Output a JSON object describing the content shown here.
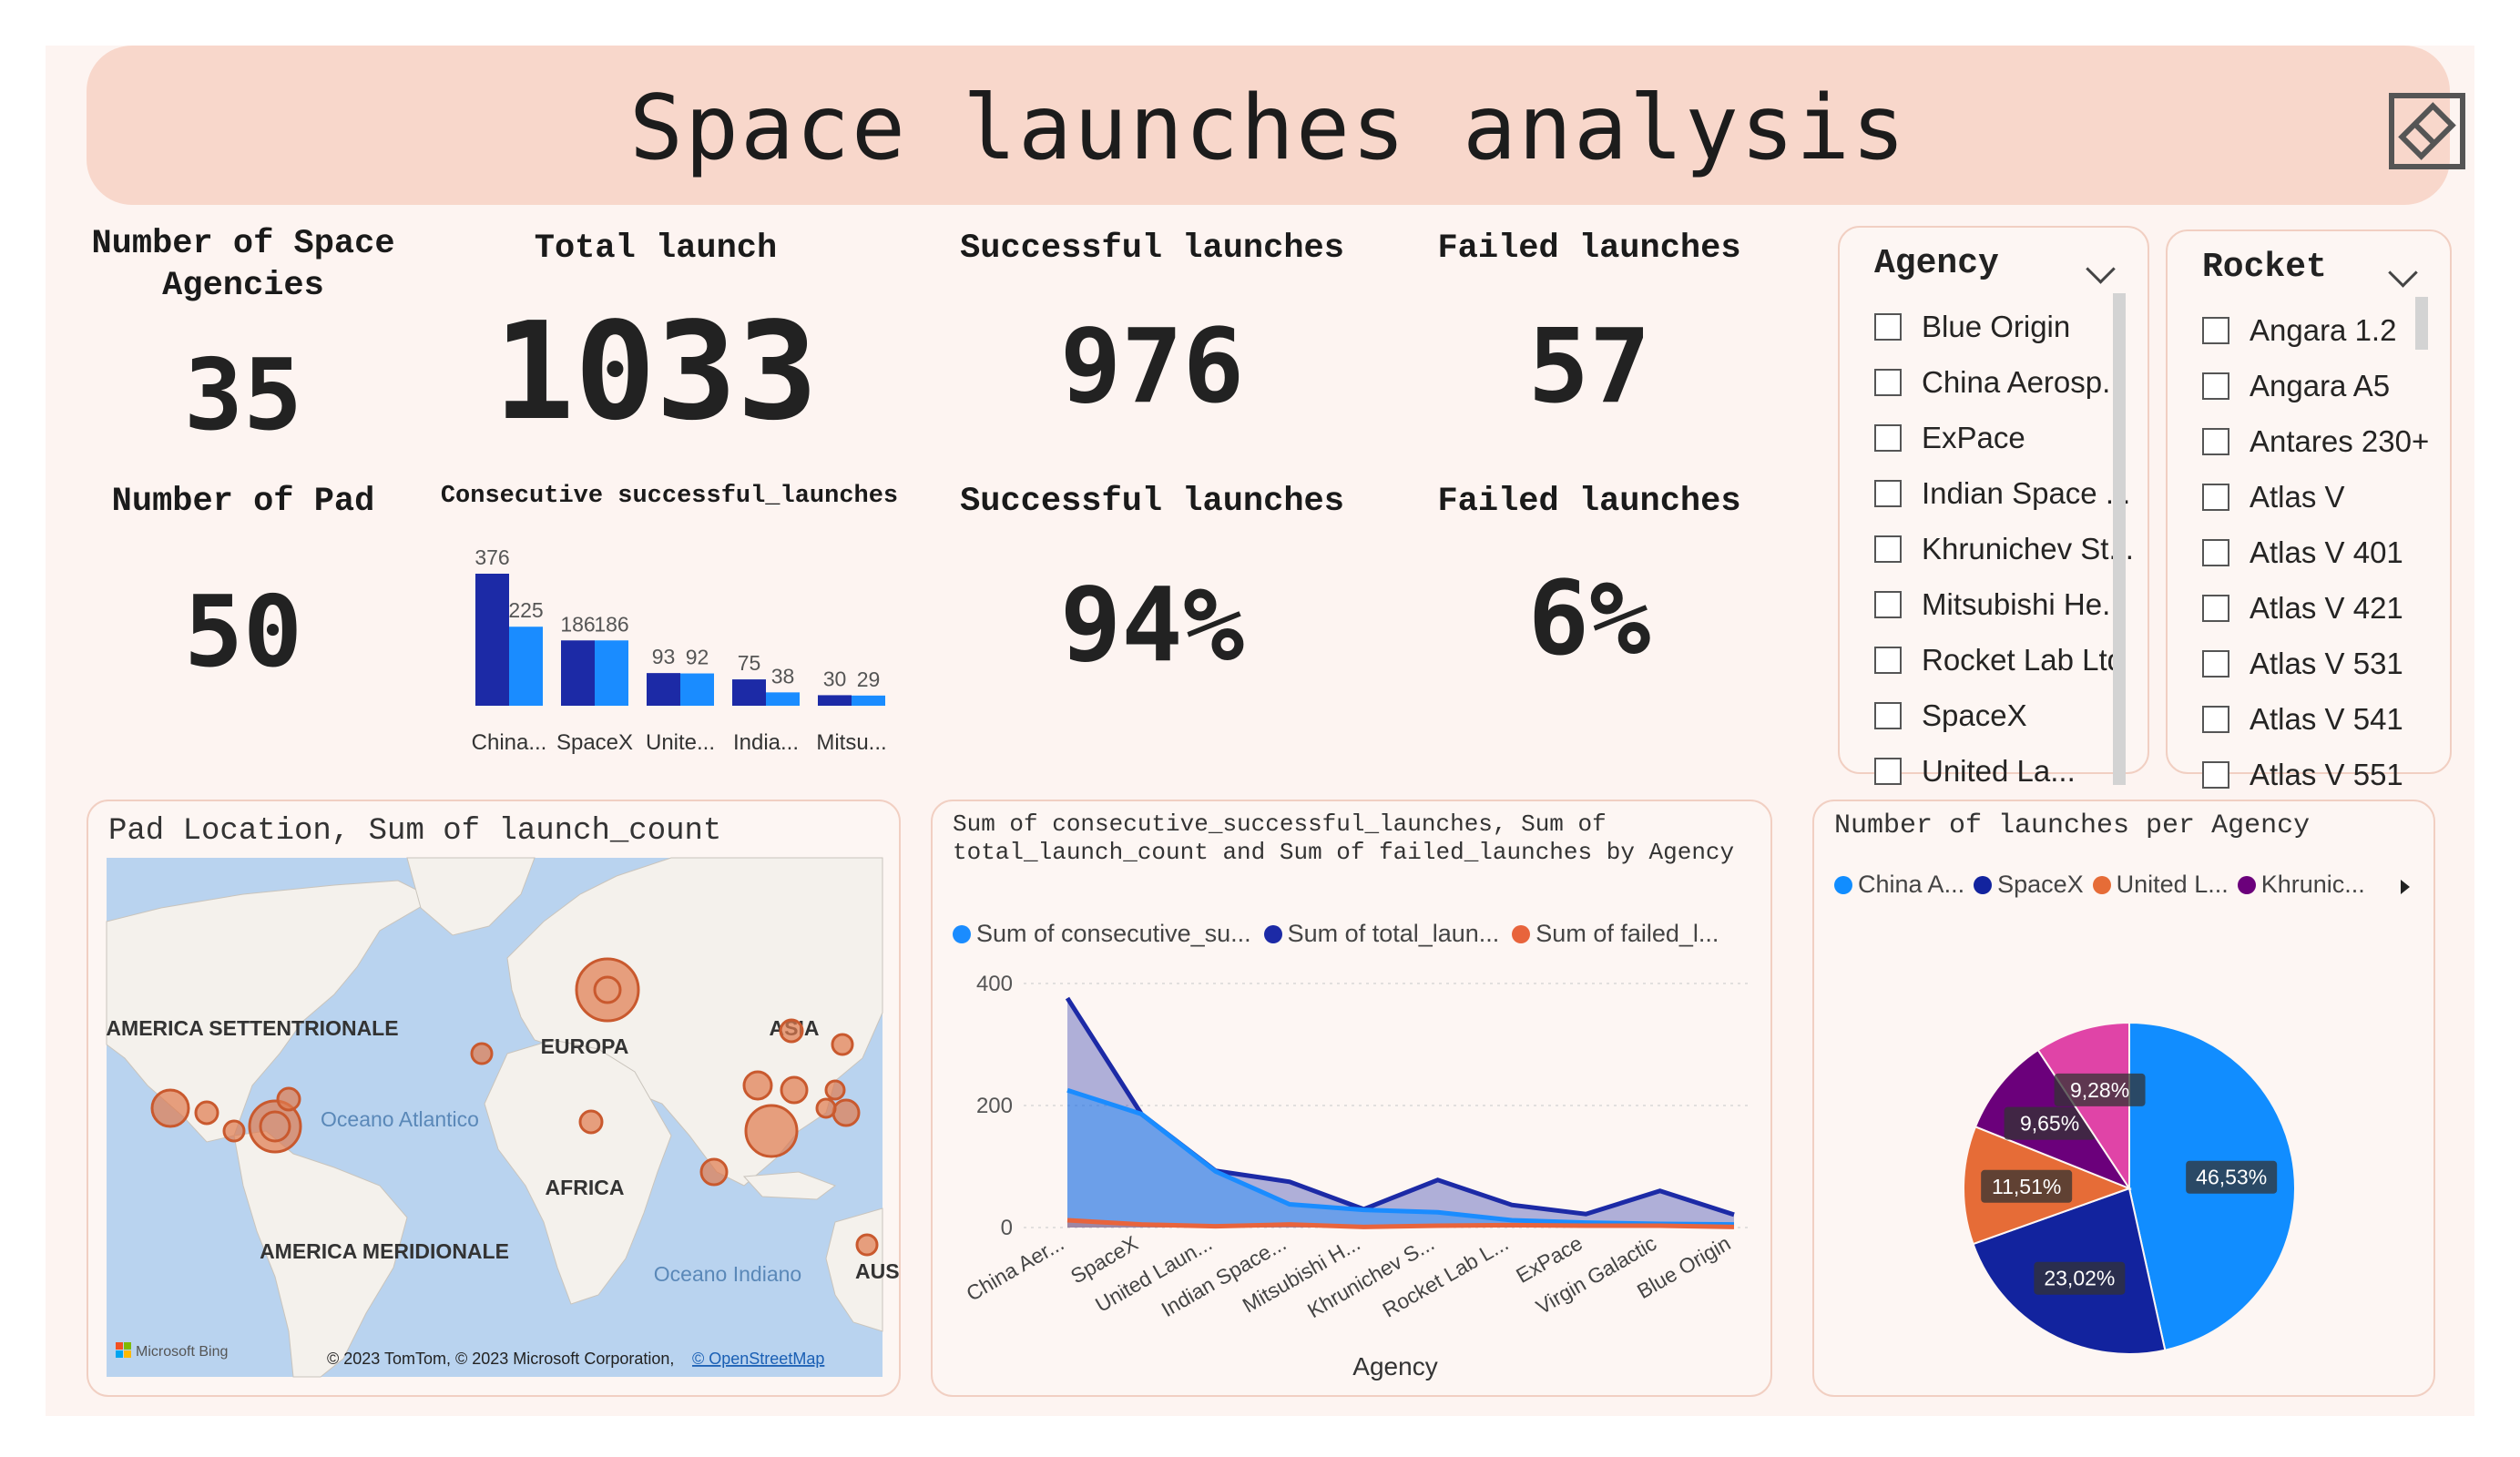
{
  "header": {
    "title": "Space launches analysis",
    "logo_icon": "powerbi-diamond-icon"
  },
  "cards": {
    "agencies": {
      "title": "Number of Space Agencies",
      "value": "35"
    },
    "total": {
      "title": "Total launch",
      "value": "1033"
    },
    "success": {
      "title": "Successful launches",
      "value": "976"
    },
    "failed": {
      "title": "Failed launches",
      "value": "57"
    },
    "pads": {
      "title": "Number of Pad",
      "value": "50"
    },
    "success_pct": {
      "title": "Successful launches",
      "value": "94%"
    },
    "failed_pct": {
      "title": "Failed launches",
      "value": "6%"
    }
  },
  "slicers": {
    "agency": {
      "title": "Agency",
      "items": [
        "Blue Origin",
        "China Aerosp...",
        "ExPace",
        "Indian Space ...",
        "Khrunichev St...",
        "Mitsubishi He...",
        "Rocket Lab Ltd",
        "SpaceX",
        "United La..."
      ]
    },
    "rocket": {
      "title": "Rocket",
      "items": [
        "Angara 1.2",
        "Angara A5",
        "Antares 230+",
        "Atlas V",
        "Atlas V 401",
        "Atlas V 421",
        "Atlas V 531",
        "Atlas V 541",
        "Atlas V 551"
      ]
    }
  },
  "map": {
    "title": "Pad Location, Sum of launch_count",
    "labels": [
      "AMERICA SETTENTRIONALE",
      "EUROPA",
      "ASIA",
      "AFRICA",
      "Oceano Atlantico",
      "AMERICA MERIDIONALE",
      "Oceano Indiano",
      "AUS"
    ],
    "attribution": "© 2023 TomTom, © 2023 Microsoft Corporation,",
    "osm_link": "© OpenStreetMap",
    "bing": "Microsoft Bing",
    "colors": {
      "water": "#b9d3ef",
      "land": "#f4f1ec",
      "bubble": "#e07b4f"
    }
  },
  "chart_data": [
    {
      "type": "bar",
      "title": "Consecutive successful_launches",
      "categories": [
        "China...",
        "SpaceX",
        "Unite...",
        "India...",
        "Mitsu..."
      ],
      "series": [
        {
          "values": [
            376,
            186,
            93,
            75,
            30
          ],
          "color": "#1c2aa6"
        },
        {
          "values": [
            225,
            186,
            92,
            38,
            29
          ],
          "color": "#1a8cff"
        }
      ],
      "ylim": [
        0,
        376
      ]
    },
    {
      "type": "area",
      "title": "Sum of consecutive_successful_launches, Sum of total_launch_count and Sum of failed_launches by Agency",
      "xlabel": "Agency",
      "categories": [
        "China Aer...",
        "SpaceX",
        "United Laun...",
        "Indian Space...",
        "Mitsubishi H...",
        "Khrunichev S...",
        "Rocket Lab L...",
        "ExPace",
        "Virgin Galactic",
        "Blue Origin"
      ],
      "yticks": [
        0,
        200,
        400
      ],
      "ylim": [
        0,
        400
      ],
      "series": [
        {
          "name": "Sum of consecutive_su...",
          "values": [
            225,
            186,
            92,
            38,
            29,
            25,
            12,
            8,
            6,
            5
          ],
          "color": "#1a8cff"
        },
        {
          "name": "Sum of total_laun...",
          "values": [
            376,
            186,
            93,
            75,
            30,
            78,
            37,
            22,
            60,
            21
          ],
          "color": "#1c2aa6"
        },
        {
          "name": "Sum of failed_l...",
          "values": [
            12,
            5,
            2,
            5,
            1,
            3,
            4,
            3,
            3,
            1
          ],
          "color": "#e8643c"
        }
      ]
    },
    {
      "type": "pie",
      "title": "Number of launches per Agency",
      "legend": [
        "China A...",
        "SpaceX",
        "United L...",
        "Khrunic..."
      ],
      "slices": [
        {
          "label": "46,53%",
          "value": 46.53,
          "color": "#118dff"
        },
        {
          "label": "23,02%",
          "value": 23.02,
          "color": "#12239e"
        },
        {
          "label": "11,51%",
          "value": 11.51,
          "color": "#e66c37"
        },
        {
          "label": "9,65%",
          "value": 9.65,
          "color": "#6b007b"
        },
        {
          "label": "9,28%",
          "value": 9.28,
          "color": "#e044a7"
        }
      ]
    }
  ]
}
